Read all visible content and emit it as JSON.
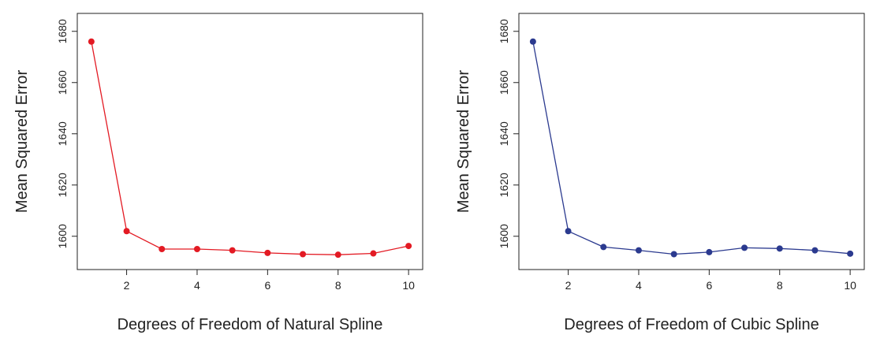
{
  "chart_data": [
    {
      "type": "line",
      "title": "",
      "xlabel": "Degrees of Freedom of Natural Spline",
      "ylabel": "Mean Squared Error",
      "xlim": [
        0.6,
        10.4
      ],
      "ylim": [
        1587,
        1687
      ],
      "xticks": [
        2,
        4,
        6,
        8,
        10
      ],
      "yticks": [
        1600,
        1620,
        1640,
        1660,
        1680
      ],
      "grid": false,
      "color": "#e31a23",
      "x": [
        1,
        2,
        3,
        4,
        5,
        6,
        7,
        8,
        9,
        10
      ],
      "y": [
        1676,
        1602,
        1595,
        1595,
        1594.5,
        1593.5,
        1593,
        1592.8,
        1593.3,
        1596.2
      ]
    },
    {
      "type": "line",
      "title": "",
      "xlabel": "Degrees of Freedom of Cubic Spline",
      "ylabel": "Mean Squared Error",
      "xlim": [
        0.6,
        10.4
      ],
      "ylim": [
        1587,
        1687
      ],
      "xticks": [
        2,
        4,
        6,
        8,
        10
      ],
      "yticks": [
        1600,
        1620,
        1640,
        1660,
        1680
      ],
      "grid": false,
      "color": "#2b3a8f",
      "x": [
        1,
        2,
        3,
        4,
        5,
        6,
        7,
        8,
        9,
        10
      ],
      "y": [
        1676,
        1602,
        1595.8,
        1594.5,
        1593,
        1593.8,
        1595.5,
        1595.2,
        1594.5,
        1593.2
      ]
    }
  ]
}
